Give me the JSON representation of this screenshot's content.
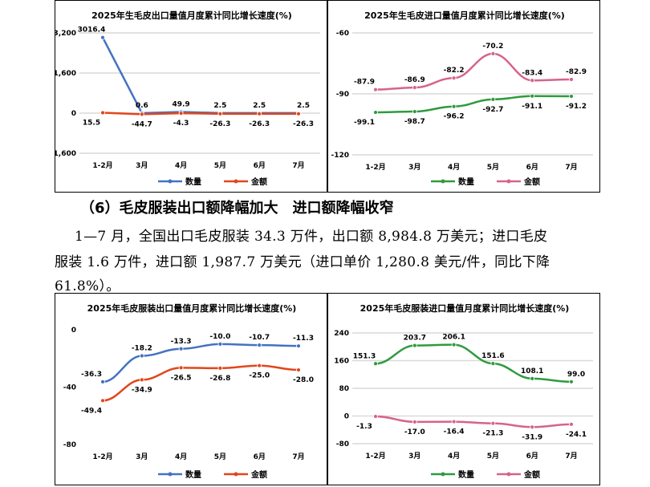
{
  "section": {
    "heading": "（6）毛皮服装出口额降幅加大　进口额降幅收窄",
    "paragraph_lines": [
      "1—7 月，全国出口毛皮服装 34.3 万件，出口额 8,984.8 万美元；进口毛皮",
      "服装 1.6 万件，进口额 1,987.7 万美元（进口单价 1,280.8 美元/件，同比下降",
      "61.8%）。"
    ]
  },
  "chart_data": [
    {
      "type": "line",
      "title": "2025年生毛皮出口量值月度累计同比增长速度(%)",
      "categories": [
        "1-2月",
        "3月",
        "4月",
        "5月",
        "6月",
        "7月"
      ],
      "ylim": [
        -1600,
        3200
      ],
      "yticks": [
        -1600,
        0,
        1600,
        3200
      ],
      "ytick_labels": [
        "-1,600",
        "0",
        "1,600",
        "3,200"
      ],
      "grid": true,
      "legend": "bottom",
      "series": [
        {
          "name": "数量",
          "color": "#4472c4",
          "values": [
            3016.4,
            0.6,
            49.9,
            2.5,
            2.5,
            2.5
          ],
          "labels": [
            "3016.4",
            "0.6",
            "49.9",
            "2.5",
            "2.5",
            "2.5"
          ]
        },
        {
          "name": "金额",
          "color": "#e2461b",
          "values": [
            15.5,
            -44.7,
            -4.3,
            -26.3,
            -26.3,
            -26.3
          ],
          "labels": [
            "15.5",
            "-44.7",
            "-4.3",
            "-26.3",
            "-26.3",
            "-26.3"
          ]
        }
      ]
    },
    {
      "type": "line",
      "title": "2025年生毛皮进口量值月度累计同比增长速度(%)",
      "categories": [
        "1-2月",
        "3月",
        "4月",
        "5月",
        "6月",
        "7月"
      ],
      "ylim": [
        -120,
        -60
      ],
      "yticks": [
        -120,
        -90,
        -60
      ],
      "ytick_labels": [
        "-120",
        "-90",
        "-60"
      ],
      "grid": true,
      "legend": "bottom",
      "series": [
        {
          "name": "数量",
          "color": "#2e9b3e",
          "values": [
            -99.1,
            -98.7,
            -96.2,
            -92.7,
            -91.1,
            -91.2
          ],
          "labels": [
            "-99.1",
            "-98.7",
            "-96.2",
            "-92.7",
            "-91.1",
            "-91.2"
          ]
        },
        {
          "name": "金额",
          "color": "#d6638c",
          "values": [
            -87.9,
            -86.9,
            -82.2,
            -70.2,
            -83.4,
            -82.9
          ],
          "labels": [
            "-87.9",
            "-86.9",
            "-82.2",
            "-70.2",
            "-83.4",
            "-82.9"
          ]
        }
      ]
    },
    {
      "type": "line",
      "title": "2025年毛皮服装出口量值月度累计同比增长速度(%)",
      "categories": [
        "1-2月",
        "3月",
        "4月",
        "5月",
        "6月",
        "7月"
      ],
      "ylim": [
        -80,
        0
      ],
      "yticks": [
        -80,
        -40,
        0
      ],
      "ytick_labels": [
        "-80",
        "-40",
        "0"
      ],
      "grid": false,
      "legend": "bottom",
      "series": [
        {
          "name": "数量",
          "color": "#4472c4",
          "values": [
            -36.3,
            -18.2,
            -13.3,
            -10.0,
            -10.7,
            -11.3
          ],
          "labels": [
            "-36.3",
            "-18.2",
            "-13.3",
            "-10.0",
            "-10.7",
            "-11.3"
          ]
        },
        {
          "name": "金额",
          "color": "#e2461b",
          "values": [
            -49.4,
            -34.9,
            -26.5,
            -26.8,
            -25.0,
            -28.0
          ],
          "labels": [
            "-49.4",
            "-34.9",
            "-26.5",
            "-26.8",
            "-25.0",
            "-28.0"
          ]
        }
      ]
    },
    {
      "type": "line",
      "title": "2025年毛皮服装进口量值月度累计同比增长速度(%)",
      "categories": [
        "1-2月",
        "3月",
        "4月",
        "5月",
        "6月",
        "7月"
      ],
      "ylim": [
        -80,
        240
      ],
      "yticks": [
        -80,
        0,
        80,
        160,
        240
      ],
      "ytick_labels": [
        "-80",
        "0",
        "80",
        "160",
        "240"
      ],
      "grid": true,
      "legend": "bottom",
      "series": [
        {
          "name": "数量",
          "color": "#2e9b3e",
          "values": [
            151.3,
            203.7,
            206.1,
            151.6,
            108.1,
            99.0
          ],
          "labels": [
            "151.3",
            "203.7",
            "206.1",
            "151.6",
            "108.1",
            "99.0"
          ]
        },
        {
          "name": "金额",
          "color": "#d6638c",
          "values": [
            -1.3,
            -17.0,
            -16.4,
            -21.3,
            -31.9,
            -24.1
          ],
          "labels": [
            "-1.3",
            "-17.0",
            "-16.4",
            "-21.3",
            "-31.9",
            "-24.1"
          ]
        }
      ]
    }
  ]
}
